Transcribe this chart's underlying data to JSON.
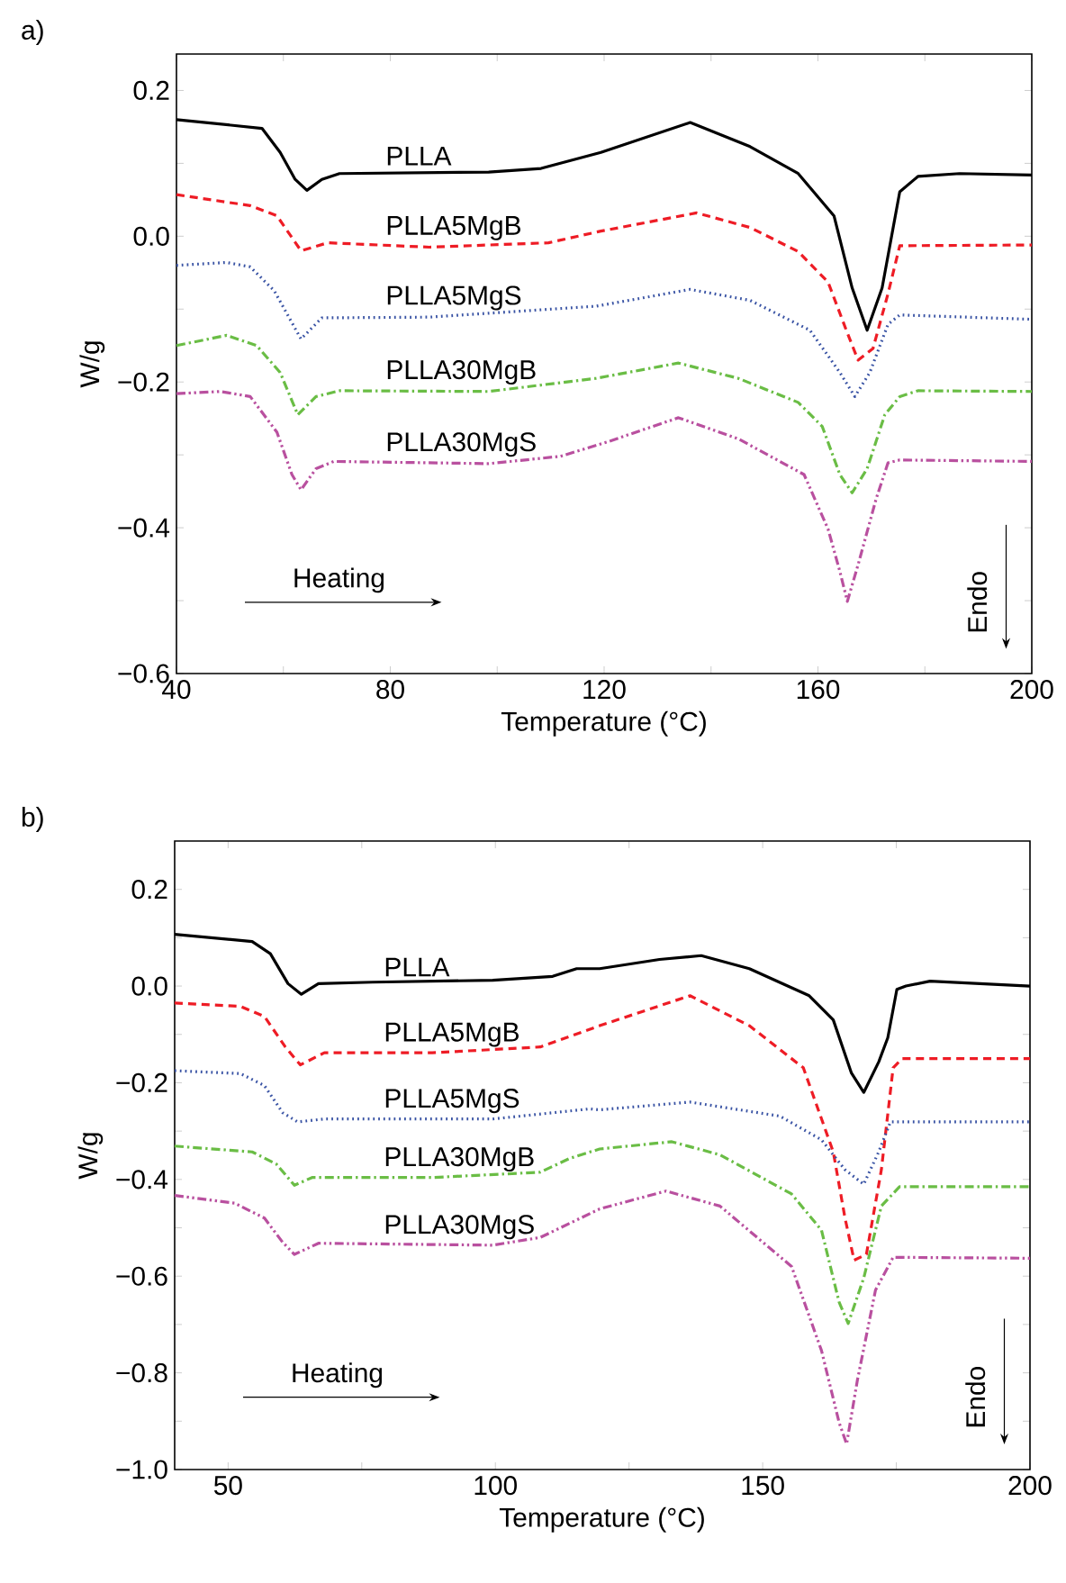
{
  "chart_data": [
    {
      "type": "line",
      "title": "a)",
      "xlabel": "Temperature (°C)",
      "ylabel": "W/g",
      "annotations": [
        "Heating",
        "Endo"
      ],
      "xlim": [
        40,
        200
      ],
      "ylim": [
        -0.6,
        0.25
      ],
      "xticks": [
        40,
        {
          "value": 60,
          "label": null
        },
        80,
        {
          "value": 100,
          "label": null
        },
        120,
        {
          "value": 140,
          "label": null
        },
        160,
        {
          "value": 180,
          "label": null
        },
        200
      ],
      "yticks": [
        {
          "value": -0.6,
          "label": "−0.6"
        },
        {
          "value": -0.5,
          "label": null
        },
        {
          "value": -0.4,
          "label": "−0.4"
        },
        {
          "value": -0.3,
          "label": null
        },
        {
          "value": -0.2,
          "label": "−0.2"
        },
        {
          "value": -0.1,
          "label": null
        },
        {
          "value": 0,
          "label": "0.0"
        },
        {
          "value": 0.1,
          "label": null
        },
        0.2
      ],
      "series": [
        {
          "name": "PLLA",
          "color": "#000000",
          "line_style": "solid",
          "x": [
            40,
            56,
            59.4,
            62.2,
            64.4,
            67.2,
            70.5,
            98.4,
            108.2,
            119.4,
            136.1,
            147.3,
            156.3,
            163,
            166.4,
            169.2,
            172,
            175.3,
            178.7,
            186.5,
            200
          ],
          "values": [
            0.16,
            0.148,
            0.115,
            0.078,
            0.063,
            0.078,
            0.086,
            0.088,
            0.093,
            0.115,
            0.156,
            0.123,
            0.086,
            0.028,
            -0.071,
            -0.129,
            -0.071,
            0.061,
            0.082,
            0.086,
            0.084
          ]
        },
        {
          "name": "PLLA5MgB",
          "color": "#ee1c25",
          "line_style": "dashed",
          "x": [
            40,
            53.8,
            58.8,
            63.3,
            68.3,
            87.3,
            109.6,
            119.4,
            137.3,
            147.3,
            156.3,
            161.9,
            165.3,
            167.5,
            170.3,
            173.1,
            175.3,
            200
          ],
          "values": [
            0.057,
            0.042,
            0.028,
            -0.02,
            -0.009,
            -0.015,
            -0.009,
            0.007,
            0.032,
            0.012,
            -0.021,
            -0.063,
            -0.129,
            -0.17,
            -0.154,
            -0.079,
            -0.013,
            -0.012
          ]
        },
        {
          "name": "PLLA5MgS",
          "color": "#3953a4",
          "line_style": "dotted",
          "x": [
            40,
            49.4,
            53.8,
            58.3,
            61.1,
            63.3,
            67.2,
            87.3,
            118.5,
            136.1,
            147.3,
            158.5,
            164.1,
            166.9,
            169.7,
            173.1,
            175.3,
            200
          ],
          "values": [
            -0.04,
            -0.036,
            -0.042,
            -0.075,
            -0.112,
            -0.141,
            -0.112,
            -0.111,
            -0.096,
            -0.073,
            -0.088,
            -0.129,
            -0.187,
            -0.22,
            -0.187,
            -0.121,
            -0.108,
            -0.114
          ]
        },
        {
          "name": "PLLA30MgB",
          "color": "#6abd45",
          "line_style": "dashdot",
          "x": [
            40,
            49.4,
            55,
            59.4,
            62.7,
            66.1,
            70.5,
            98.4,
            118.5,
            133.9,
            145.1,
            156.3,
            160.8,
            164.1,
            166.4,
            169.2,
            172.5,
            175.3,
            178.7,
            200
          ],
          "values": [
            -0.15,
            -0.136,
            -0.15,
            -0.187,
            -0.245,
            -0.22,
            -0.212,
            -0.213,
            -0.195,
            -0.174,
            -0.195,
            -0.228,
            -0.261,
            -0.327,
            -0.352,
            -0.319,
            -0.245,
            -0.22,
            -0.212,
            -0.213
          ]
        },
        {
          "name": "PLLA30MgS",
          "color": "#b9509f",
          "line_style": "dashdotdot",
          "x": [
            40,
            48.2,
            53.8,
            58.8,
            61.6,
            63.3,
            66.1,
            69.4,
            98.4,
            111.8,
            120.7,
            133.9,
            145.1,
            157.4,
            161.9,
            164.1,
            165.5,
            167.5,
            170.9,
            173.1,
            175.3,
            200
          ],
          "values": [
            -0.216,
            -0.213,
            -0.22,
            -0.269,
            -0.327,
            -0.348,
            -0.319,
            -0.309,
            -0.312,
            -0.302,
            -0.282,
            -0.249,
            -0.278,
            -0.327,
            -0.402,
            -0.46,
            -0.501,
            -0.451,
            -0.36,
            -0.311,
            -0.307,
            -0.309
          ]
        }
      ]
    },
    {
      "type": "line",
      "title": "b)",
      "xlabel": "Temperature (°C)",
      "ylabel": "W/g",
      "annotations": [
        "Heating",
        "Endo"
      ],
      "xlim": [
        40,
        200
      ],
      "ylim": [
        -1.0,
        0.3
      ],
      "xticks": [
        50,
        {
          "value": 75,
          "label": null
        },
        100,
        {
          "value": 125,
          "label": null
        },
        150,
        {
          "value": 175,
          "label": null
        },
        200
      ],
      "yticks": [
        {
          "value": -1.0,
          "label": "−1.0"
        },
        {
          "value": -0.9,
          "label": null
        },
        {
          "value": -0.8,
          "label": "−0.8"
        },
        {
          "value": -0.7,
          "label": null
        },
        {
          "value": -0.6,
          "label": "−0.6"
        },
        {
          "value": -0.5,
          "label": null
        },
        {
          "value": -0.4,
          "label": "−0.4"
        },
        {
          "value": -0.3,
          "label": null
        },
        {
          "value": -0.2,
          "label": "−0.2"
        },
        {
          "value": -0.1,
          "label": null
        },
        {
          "value": 0,
          "label": "0.0"
        },
        {
          "value": 0.1,
          "label": null
        },
        0.2
      ],
      "series": [
        {
          "name": "PLLA",
          "color": "#000000",
          "line_style": "solid",
          "x": [
            40,
            54.5,
            57.9,
            61.2,
            63.7,
            66.9,
            77,
            99.5,
            110.7,
            115.2,
            119.5,
            130.7,
            138.5,
            147.5,
            158.7,
            163.2,
            166.6,
            168.9,
            171.7,
            173.4,
            175.1,
            176.8,
            181.3,
            200
          ],
          "values": [
            0.107,
            0.092,
            0.067,
            0.005,
            -0.017,
            0.005,
            0.008,
            0.012,
            0.02,
            0.036,
            0.036,
            0.055,
            0.063,
            0.036,
            -0.02,
            -0.07,
            -0.18,
            -0.22,
            -0.157,
            -0.107,
            -0.007,
            0.0,
            0.01,
            0.0
          ]
        },
        {
          "name": "PLLA5MgB",
          "color": "#ee1c25",
          "line_style": "dashed",
          "x": [
            40,
            52.3,
            56.8,
            60.7,
            63.5,
            68,
            88.2,
            108.4,
            119.5,
            136.4,
            147.5,
            157.6,
            163.2,
            165.4,
            167.1,
            169.4,
            172.2,
            174.4,
            176.1,
            200
          ],
          "values": [
            -0.035,
            -0.042,
            -0.063,
            -0.126,
            -0.163,
            -0.138,
            -0.138,
            -0.126,
            -0.082,
            -0.02,
            -0.082,
            -0.169,
            -0.343,
            -0.48,
            -0.567,
            -0.555,
            -0.38,
            -0.169,
            -0.15,
            -0.15
          ]
        },
        {
          "name": "PLLA5MgS",
          "color": "#3953a4",
          "line_style": "dotted",
          "x": [
            40,
            52.3,
            56.8,
            60.2,
            63,
            68,
            99.5,
            117.7,
            119.5,
            136.4,
            153.2,
            161,
            165.4,
            168.9,
            171.7,
            173.9,
            200
          ],
          "values": [
            -0.175,
            -0.181,
            -0.206,
            -0.262,
            -0.281,
            -0.275,
            -0.275,
            -0.254,
            -0.256,
            -0.24,
            -0.269,
            -0.318,
            -0.38,
            -0.41,
            -0.343,
            -0.281,
            -0.281
          ]
        },
        {
          "name": "PLLA30MgB",
          "color": "#6abd45",
          "line_style": "dashdot",
          "x": [
            40,
            54.5,
            59,
            62.4,
            65.7,
            88.2,
            108.4,
            114,
            119.5,
            133,
            142,
            155.4,
            161,
            164.3,
            166,
            168.9,
            172.2,
            175.6,
            200
          ],
          "values": [
            -0.331,
            -0.343,
            -0.368,
            -0.412,
            -0.396,
            -0.396,
            -0.385,
            -0.356,
            -0.337,
            -0.322,
            -0.349,
            -0.43,
            -0.505,
            -0.654,
            -0.698,
            -0.604,
            -0.455,
            -0.415,
            -0.415
          ]
        },
        {
          "name": "PLLA30MgS",
          "color": "#b9509f",
          "line_style": "dashdotdot",
          "x": [
            40,
            51.2,
            56.8,
            60.2,
            62.4,
            66.9,
            99.5,
            108.4,
            119.5,
            131.9,
            142,
            155.4,
            161,
            164.3,
            165.7,
            167.7,
            171.1,
            174.4,
            200
          ],
          "values": [
            -0.433,
            -0.449,
            -0.48,
            -0.53,
            -0.555,
            -0.532,
            -0.536,
            -0.52,
            -0.461,
            -0.424,
            -0.455,
            -0.58,
            -0.754,
            -0.903,
            -0.947,
            -0.816,
            -0.629,
            -0.561,
            -0.563
          ]
        }
      ]
    }
  ]
}
